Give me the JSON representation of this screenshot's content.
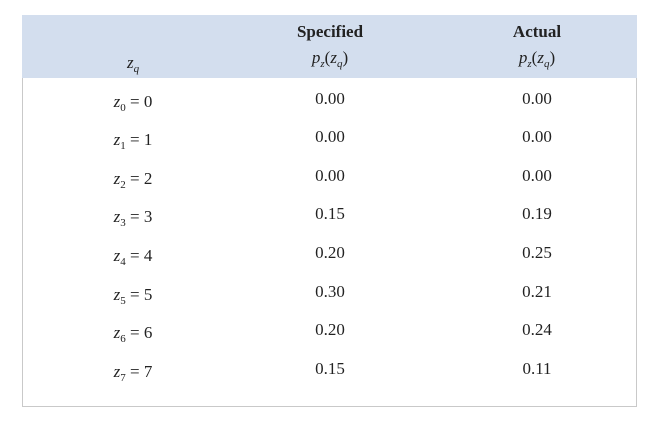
{
  "table": {
    "header": [
      {
        "top": null,
        "formula": [
          {
            "text": "z",
            "italic": true
          },
          {
            "text": "q",
            "italic": true,
            "sub": true
          }
        ]
      },
      {
        "top": "Specified",
        "formula": [
          {
            "text": "p",
            "italic": true
          },
          {
            "text": "z",
            "italic": true,
            "sub": true
          },
          {
            "text": "("
          },
          {
            "text": "z",
            "italic": true
          },
          {
            "text": "q",
            "italic": true,
            "sub": true
          },
          {
            "text": ")"
          }
        ]
      },
      {
        "top": "Actual",
        "formula": [
          {
            "text": "p",
            "italic": true
          },
          {
            "text": "z",
            "italic": true,
            "sub": true
          },
          {
            "text": "("
          },
          {
            "text": "z",
            "italic": true
          },
          {
            "text": "q",
            "italic": true,
            "sub": true
          },
          {
            "text": ")"
          }
        ]
      }
    ],
    "rows": [
      {
        "label": [
          {
            "text": "z",
            "italic": true
          },
          {
            "text": "0",
            "sub": true
          },
          {
            "text": " = 0"
          }
        ],
        "specified": "0.00",
        "actual": "0.00"
      },
      {
        "label": [
          {
            "text": "z",
            "italic": true
          },
          {
            "text": "1",
            "sub": true
          },
          {
            "text": " = 1"
          }
        ],
        "specified": "0.00",
        "actual": "0.00"
      },
      {
        "label": [
          {
            "text": "z",
            "italic": true
          },
          {
            "text": "2",
            "sub": true
          },
          {
            "text": " = 2"
          }
        ],
        "specified": "0.00",
        "actual": "0.00"
      },
      {
        "label": [
          {
            "text": "z",
            "italic": true
          },
          {
            "text": "3",
            "sub": true
          },
          {
            "text": " = 3"
          }
        ],
        "specified": "0.15",
        "actual": "0.19"
      },
      {
        "label": [
          {
            "text": "z",
            "italic": true
          },
          {
            "text": "4",
            "sub": true
          },
          {
            "text": " = 4"
          }
        ],
        "specified": "0.20",
        "actual": "0.25"
      },
      {
        "label": [
          {
            "text": "z",
            "italic": true
          },
          {
            "text": "5",
            "sub": true
          },
          {
            "text": " = 5"
          }
        ],
        "specified": "0.30",
        "actual": "0.21"
      },
      {
        "label": [
          {
            "text": "z",
            "italic": true
          },
          {
            "text": "6",
            "sub": true
          },
          {
            "text": " = 6"
          }
        ],
        "specified": "0.20",
        "actual": "0.24"
      },
      {
        "label": [
          {
            "text": "z",
            "italic": true
          },
          {
            "text": "7",
            "sub": true
          },
          {
            "text": " = 7"
          }
        ],
        "specified": "0.15",
        "actual": "0.11"
      }
    ]
  }
}
